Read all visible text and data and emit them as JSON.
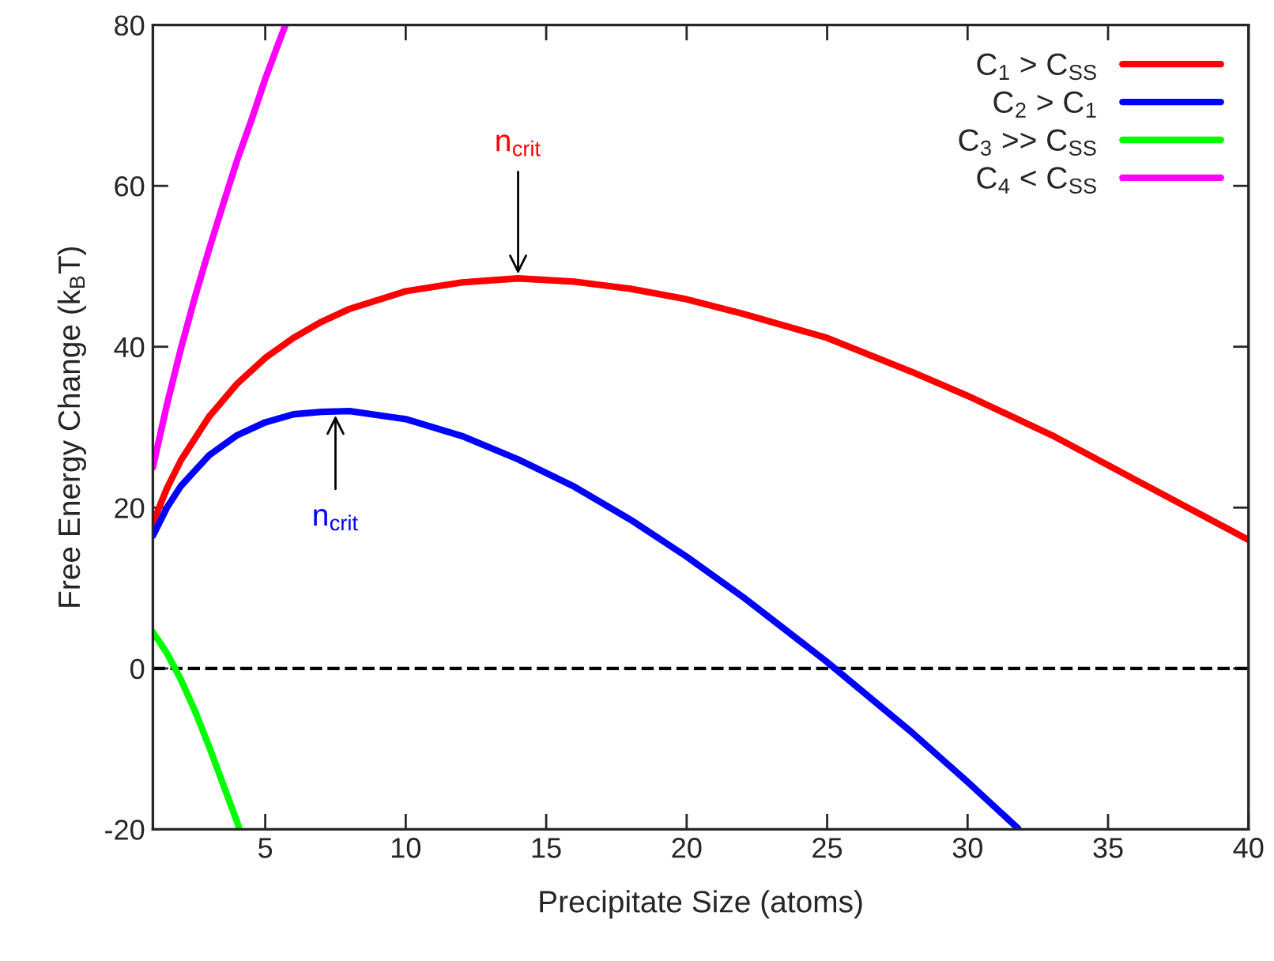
{
  "chart_data": {
    "type": "line",
    "xlabel": "Precipitate Size (atoms)",
    "ylabel": "Free Energy Change (k$_{B}$T)",
    "xlim": [
      1,
      40
    ],
    "ylim": [
      -20,
      80
    ],
    "xticks": [
      5,
      10,
      15,
      20,
      25,
      30,
      35,
      40
    ],
    "yticks": [
      -20,
      0,
      20,
      40,
      60,
      80
    ],
    "legend": "top right",
    "grid": false,
    "line_style": "solid",
    "marker": "none",
    "series": [
      {
        "name": "C$_{1}$ > C$_{SS}$",
        "color": "#ff0000",
        "x": [
          1,
          1.5,
          2,
          3,
          4,
          5,
          6,
          7,
          8,
          10,
          12,
          14,
          16,
          18,
          20,
          22,
          25,
          28,
          30,
          33,
          36,
          38,
          40
        ],
        "values": [
          18.1,
          22.4,
          25.9,
          31.3,
          35.4,
          38.6,
          41.1,
          43.1,
          44.7,
          46.9,
          48.0,
          48.5,
          48.1,
          47.2,
          45.9,
          44.1,
          41.1,
          36.9,
          33.9,
          29.0,
          23.4,
          19.7,
          16.0
        ]
      },
      {
        "name": "C$_{2}$ > C$_{1}$",
        "color": "#0000ff",
        "x": [
          1,
          1.5,
          2,
          3,
          4,
          5,
          6,
          7,
          8,
          10,
          12,
          14,
          16,
          18,
          20,
          22,
          25,
          28,
          30,
          31.8
        ],
        "values": [
          16.5,
          20.0,
          22.7,
          26.5,
          29.0,
          30.6,
          31.6,
          31.9,
          32.0,
          31.0,
          28.9,
          26.0,
          22.6,
          18.5,
          13.9,
          8.9,
          0.8,
          -7.9,
          -14.1,
          -19.9
        ]
      },
      {
        "name": "C$_{3}$ >> C$_{SS}$",
        "color": "#00ff00",
        "x": [
          1,
          1.5,
          2,
          2.5,
          3,
          3.5,
          4,
          4.08
        ],
        "values": [
          4.5,
          1.9,
          -1.4,
          -5.3,
          -9.7,
          -14.4,
          -19.1,
          -20.0
        ]
      },
      {
        "name": "C$_{4}$ < C$_{SS}$",
        "color": "#ff00ff",
        "x": [
          1,
          1.5,
          2,
          2.5,
          3,
          3.5,
          4,
          4.5,
          5,
          5.5,
          5.72
        ],
        "values": [
          25.0,
          32.8,
          39.8,
          46.2,
          52.1,
          57.7,
          63.2,
          68.1,
          73.3,
          78.0,
          80.0
        ]
      }
    ],
    "ref_lines": [
      {
        "axis": "y",
        "value": 0,
        "color": "#000000",
        "line_style": "dashed"
      }
    ],
    "annotations": [
      {
        "text": "n$_{crit}$",
        "x": 14,
        "y": 48.5
      },
      {
        "text": "n$_{crit}$",
        "x": 7.5,
        "y": 32.0
      }
    ]
  }
}
